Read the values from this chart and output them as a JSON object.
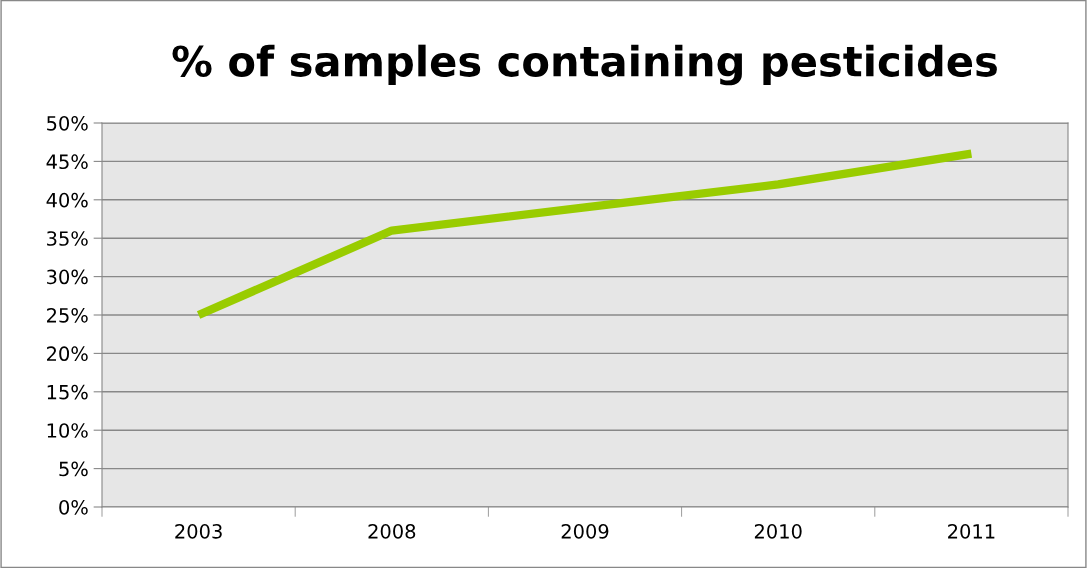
{
  "chart_data": {
    "type": "line",
    "title": "% of samples containing pesticides",
    "categories": [
      "2003",
      "2008",
      "2009",
      "2010",
      "2011"
    ],
    "series": [
      {
        "color": "#99cc00",
        "values": [
          25,
          36,
          39,
          42,
          46
        ]
      }
    ],
    "ylim": [
      0,
      50
    ],
    "yticks": [
      {
        "value": 0,
        "label": "0%"
      },
      {
        "value": 5,
        "label": "5%"
      },
      {
        "value": 10,
        "label": "10%"
      },
      {
        "value": 15,
        "label": "15%"
      },
      {
        "value": 20,
        "label": "20%"
      },
      {
        "value": 25,
        "label": "25%"
      },
      {
        "value": 30,
        "label": "30%"
      },
      {
        "value": 35,
        "label": "35%"
      },
      {
        "value": 40,
        "label": "40%"
      },
      {
        "value": 45,
        "label": "45%"
      },
      {
        "value": 50,
        "label": "50%"
      }
    ],
    "grid": "y",
    "legend": false,
    "marker": "none",
    "line_style": "solid"
  }
}
